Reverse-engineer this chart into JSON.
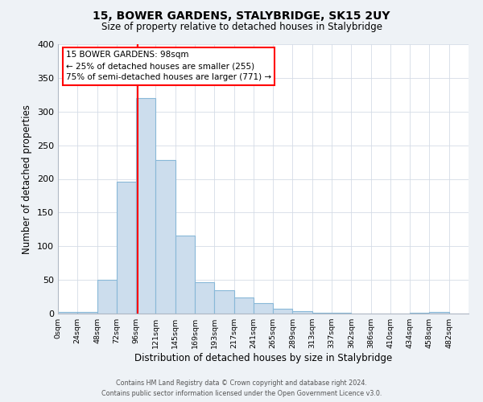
{
  "title": "15, BOWER GARDENS, STALYBRIDGE, SK15 2UY",
  "subtitle": "Size of property relative to detached houses in Stalybridge",
  "xlabel": "Distribution of detached houses by size in Stalybridge",
  "ylabel": "Number of detached properties",
  "bin_edges": [
    0,
    24,
    48,
    72,
    96,
    120,
    144,
    168,
    192,
    216,
    240,
    264,
    288,
    312,
    336,
    360,
    384,
    408,
    432,
    456,
    480,
    504
  ],
  "bin_labels": [
    "0sqm",
    "24sqm",
    "48sqm",
    "72sqm",
    "96sqm",
    "121sqm",
    "145sqm",
    "169sqm",
    "193sqm",
    "217sqm",
    "241sqm",
    "265sqm",
    "289sqm",
    "313sqm",
    "337sqm",
    "362sqm",
    "386sqm",
    "410sqm",
    "434sqm",
    "458sqm",
    "482sqm"
  ],
  "counts": [
    2,
    2,
    50,
    196,
    320,
    228,
    116,
    46,
    35,
    24,
    16,
    7,
    3,
    1,
    1,
    0,
    0,
    0,
    1,
    2,
    0
  ],
  "bar_color": "#ccdded",
  "bar_edge_color": "#88b8d8",
  "red_line_x": 98,
  "annotation_title": "15 BOWER GARDENS: 98sqm",
  "annotation_line1": "← 25% of detached houses are smaller (255)",
  "annotation_line2": "75% of semi-detached houses are larger (771) →",
  "ylim": [
    0,
    400
  ],
  "yticks": [
    0,
    50,
    100,
    150,
    200,
    250,
    300,
    350,
    400
  ],
  "footer1": "Contains HM Land Registry data © Crown copyright and database right 2024.",
  "footer2": "Contains public sector information licensed under the Open Government Licence v3.0.",
  "bg_color": "#eef2f6",
  "plot_bg_color": "#ffffff",
  "grid_color": "#d4dce6"
}
